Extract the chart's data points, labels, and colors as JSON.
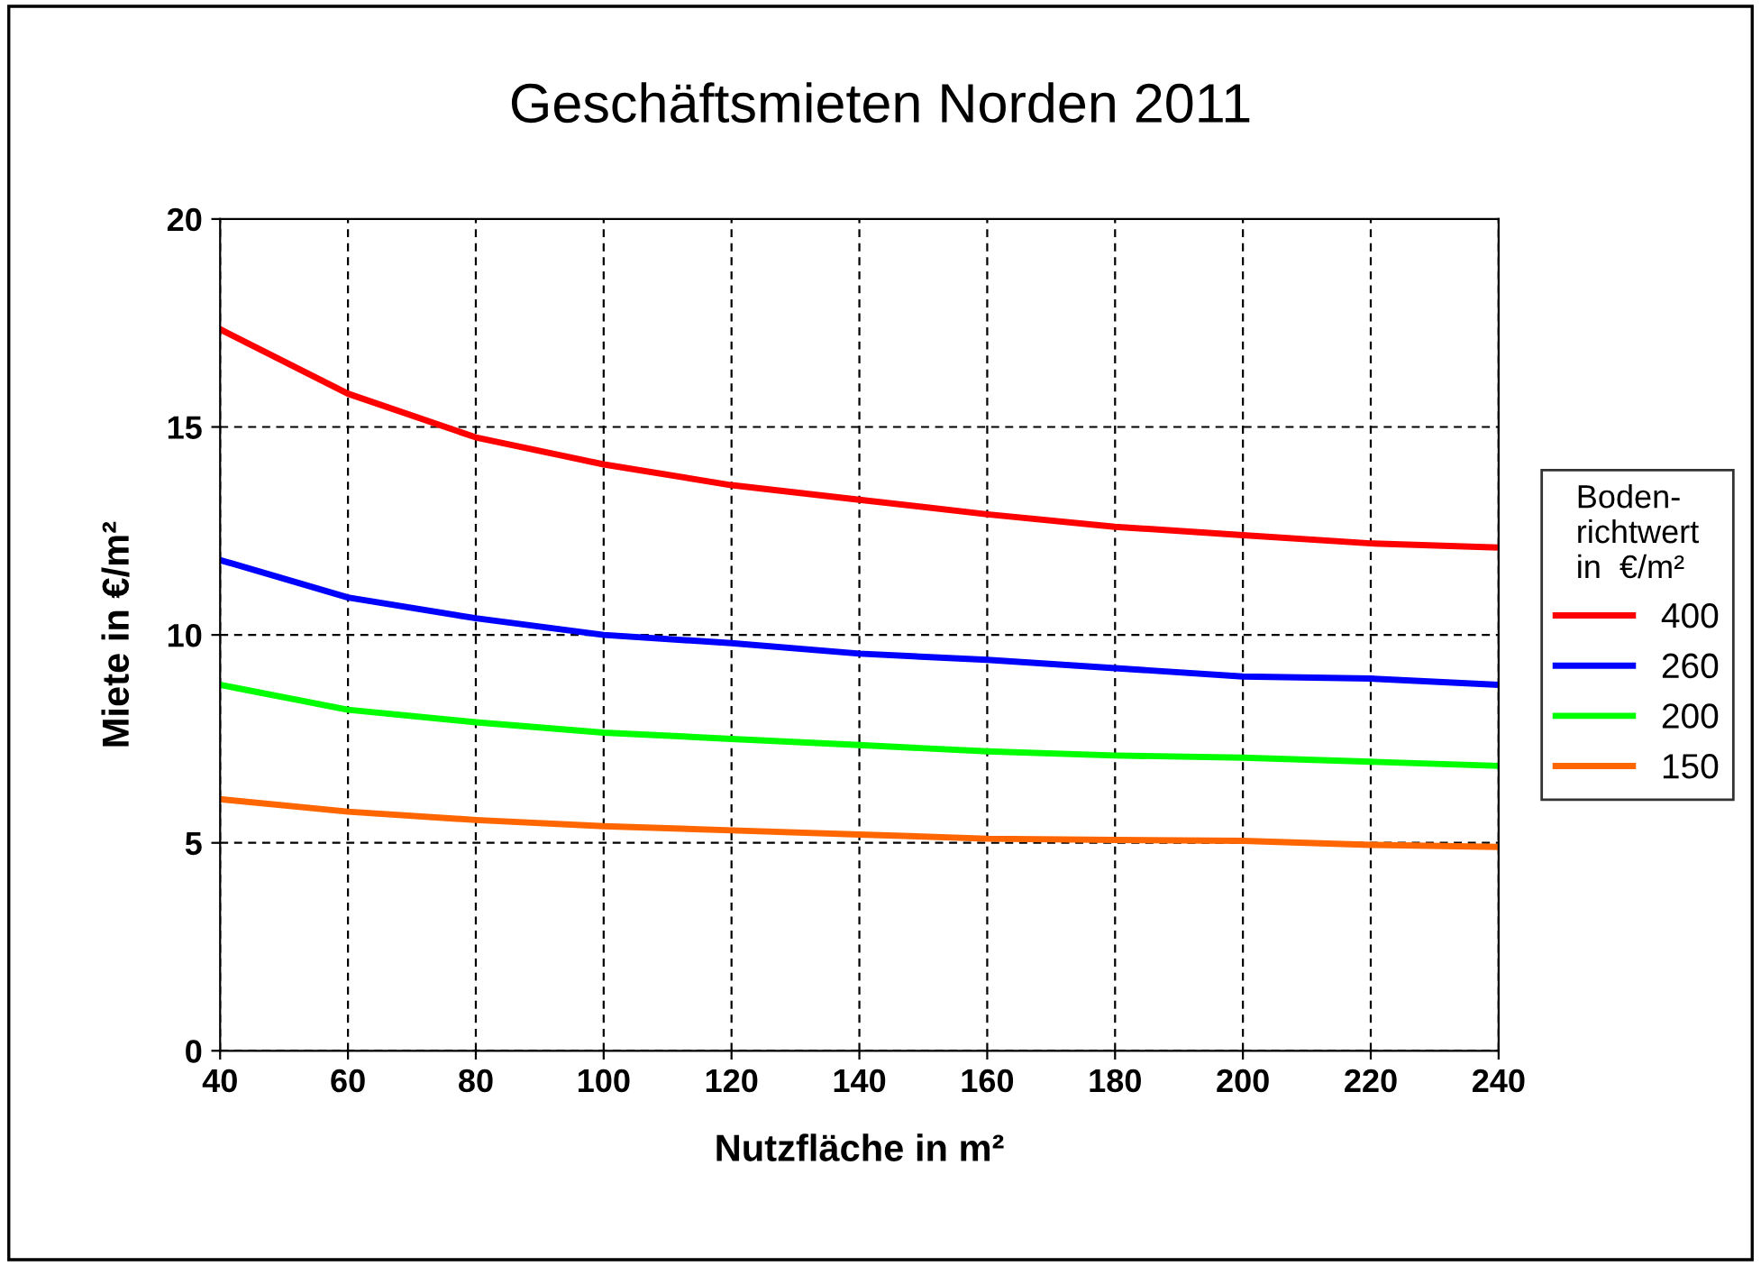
{
  "chart_data": {
    "type": "line",
    "title": "Geschäftsmieten Norden 2011",
    "xlabel": "Nutzfläche in m²",
    "ylabel": "Miete in €/m²",
    "legend_title": "Boden-\nrichtwert\nin  €/m²",
    "x": [
      40,
      60,
      80,
      100,
      120,
      140,
      160,
      180,
      200,
      220,
      240
    ],
    "series": [
      {
        "name": "400",
        "color": "#ff0000",
        "values": [
          17.35,
          15.8,
          14.75,
          14.1,
          13.6,
          13.25,
          12.9,
          12.6,
          12.4,
          12.2,
          12.1
        ]
      },
      {
        "name": "260",
        "color": "#0000ff",
        "values": [
          11.8,
          10.9,
          10.4,
          10.0,
          9.8,
          9.55,
          9.4,
          9.2,
          9.0,
          8.95,
          8.8
        ]
      },
      {
        "name": "200",
        "color": "#00ff00",
        "values": [
          8.8,
          8.2,
          7.9,
          7.65,
          7.5,
          7.35,
          7.2,
          7.1,
          7.05,
          6.95,
          6.85
        ]
      },
      {
        "name": "150",
        "color": "#ff6600",
        "values": [
          6.05,
          5.75,
          5.55,
          5.4,
          5.3,
          5.2,
          5.1,
          5.07,
          5.05,
          4.95,
          4.9
        ]
      }
    ],
    "xlim": [
      40,
      240
    ],
    "xticks": [
      40,
      60,
      80,
      100,
      120,
      140,
      160,
      180,
      200,
      220,
      240
    ],
    "ylim": [
      0,
      20
    ],
    "yticks": [
      0,
      5,
      10,
      15,
      20
    ],
    "grid": true,
    "legend": "right",
    "marker": "none",
    "line_style": "solid"
  }
}
